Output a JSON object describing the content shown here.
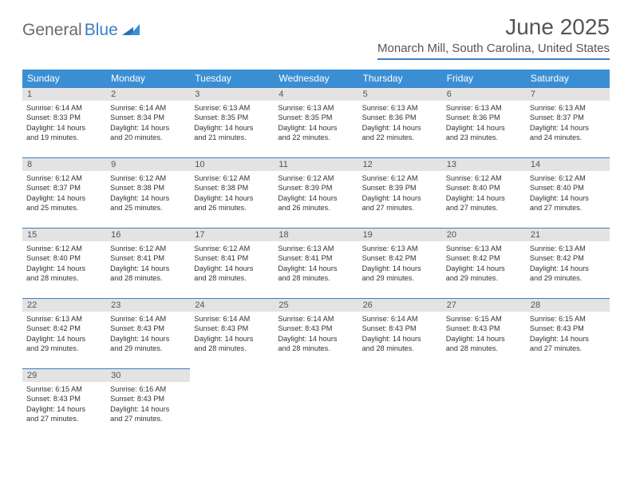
{
  "brand": {
    "part1": "General",
    "part2": "Blue"
  },
  "title": "June 2025",
  "location": "Monarch Mill, South Carolina, United States",
  "colors": {
    "header_bar": "#3a8fd4",
    "accent_line": "#3a7fc4",
    "day_number_bg": "#e3e3e3",
    "text": "#333333",
    "muted": "#555555",
    "logo_blue": "#3a7fc4"
  },
  "weekdays": [
    "Sunday",
    "Monday",
    "Tuesday",
    "Wednesday",
    "Thursday",
    "Friday",
    "Saturday"
  ],
  "days": [
    {
      "n": "1",
      "sunrise": "Sunrise: 6:14 AM",
      "sunset": "Sunset: 8:33 PM",
      "day1": "Daylight: 14 hours",
      "day2": "and 19 minutes."
    },
    {
      "n": "2",
      "sunrise": "Sunrise: 6:14 AM",
      "sunset": "Sunset: 8:34 PM",
      "day1": "Daylight: 14 hours",
      "day2": "and 20 minutes."
    },
    {
      "n": "3",
      "sunrise": "Sunrise: 6:13 AM",
      "sunset": "Sunset: 8:35 PM",
      "day1": "Daylight: 14 hours",
      "day2": "and 21 minutes."
    },
    {
      "n": "4",
      "sunrise": "Sunrise: 6:13 AM",
      "sunset": "Sunset: 8:35 PM",
      "day1": "Daylight: 14 hours",
      "day2": "and 22 minutes."
    },
    {
      "n": "5",
      "sunrise": "Sunrise: 6:13 AM",
      "sunset": "Sunset: 8:36 PM",
      "day1": "Daylight: 14 hours",
      "day2": "and 22 minutes."
    },
    {
      "n": "6",
      "sunrise": "Sunrise: 6:13 AM",
      "sunset": "Sunset: 8:36 PM",
      "day1": "Daylight: 14 hours",
      "day2": "and 23 minutes."
    },
    {
      "n": "7",
      "sunrise": "Sunrise: 6:13 AM",
      "sunset": "Sunset: 8:37 PM",
      "day1": "Daylight: 14 hours",
      "day2": "and 24 minutes."
    },
    {
      "n": "8",
      "sunrise": "Sunrise: 6:12 AM",
      "sunset": "Sunset: 8:37 PM",
      "day1": "Daylight: 14 hours",
      "day2": "and 25 minutes."
    },
    {
      "n": "9",
      "sunrise": "Sunrise: 6:12 AM",
      "sunset": "Sunset: 8:38 PM",
      "day1": "Daylight: 14 hours",
      "day2": "and 25 minutes."
    },
    {
      "n": "10",
      "sunrise": "Sunrise: 6:12 AM",
      "sunset": "Sunset: 8:38 PM",
      "day1": "Daylight: 14 hours",
      "day2": "and 26 minutes."
    },
    {
      "n": "11",
      "sunrise": "Sunrise: 6:12 AM",
      "sunset": "Sunset: 8:39 PM",
      "day1": "Daylight: 14 hours",
      "day2": "and 26 minutes."
    },
    {
      "n": "12",
      "sunrise": "Sunrise: 6:12 AM",
      "sunset": "Sunset: 8:39 PM",
      "day1": "Daylight: 14 hours",
      "day2": "and 27 minutes."
    },
    {
      "n": "13",
      "sunrise": "Sunrise: 6:12 AM",
      "sunset": "Sunset: 8:40 PM",
      "day1": "Daylight: 14 hours",
      "day2": "and 27 minutes."
    },
    {
      "n": "14",
      "sunrise": "Sunrise: 6:12 AM",
      "sunset": "Sunset: 8:40 PM",
      "day1": "Daylight: 14 hours",
      "day2": "and 27 minutes."
    },
    {
      "n": "15",
      "sunrise": "Sunrise: 6:12 AM",
      "sunset": "Sunset: 8:40 PM",
      "day1": "Daylight: 14 hours",
      "day2": "and 28 minutes."
    },
    {
      "n": "16",
      "sunrise": "Sunrise: 6:12 AM",
      "sunset": "Sunset: 8:41 PM",
      "day1": "Daylight: 14 hours",
      "day2": "and 28 minutes."
    },
    {
      "n": "17",
      "sunrise": "Sunrise: 6:12 AM",
      "sunset": "Sunset: 8:41 PM",
      "day1": "Daylight: 14 hours",
      "day2": "and 28 minutes."
    },
    {
      "n": "18",
      "sunrise": "Sunrise: 6:13 AM",
      "sunset": "Sunset: 8:41 PM",
      "day1": "Daylight: 14 hours",
      "day2": "and 28 minutes."
    },
    {
      "n": "19",
      "sunrise": "Sunrise: 6:13 AM",
      "sunset": "Sunset: 8:42 PM",
      "day1": "Daylight: 14 hours",
      "day2": "and 29 minutes."
    },
    {
      "n": "20",
      "sunrise": "Sunrise: 6:13 AM",
      "sunset": "Sunset: 8:42 PM",
      "day1": "Daylight: 14 hours",
      "day2": "and 29 minutes."
    },
    {
      "n": "21",
      "sunrise": "Sunrise: 6:13 AM",
      "sunset": "Sunset: 8:42 PM",
      "day1": "Daylight: 14 hours",
      "day2": "and 29 minutes."
    },
    {
      "n": "22",
      "sunrise": "Sunrise: 6:13 AM",
      "sunset": "Sunset: 8:42 PM",
      "day1": "Daylight: 14 hours",
      "day2": "and 29 minutes."
    },
    {
      "n": "23",
      "sunrise": "Sunrise: 6:14 AM",
      "sunset": "Sunset: 8:43 PM",
      "day1": "Daylight: 14 hours",
      "day2": "and 29 minutes."
    },
    {
      "n": "24",
      "sunrise": "Sunrise: 6:14 AM",
      "sunset": "Sunset: 8:43 PM",
      "day1": "Daylight: 14 hours",
      "day2": "and 28 minutes."
    },
    {
      "n": "25",
      "sunrise": "Sunrise: 6:14 AM",
      "sunset": "Sunset: 8:43 PM",
      "day1": "Daylight: 14 hours",
      "day2": "and 28 minutes."
    },
    {
      "n": "26",
      "sunrise": "Sunrise: 6:14 AM",
      "sunset": "Sunset: 8:43 PM",
      "day1": "Daylight: 14 hours",
      "day2": "and 28 minutes."
    },
    {
      "n": "27",
      "sunrise": "Sunrise: 6:15 AM",
      "sunset": "Sunset: 8:43 PM",
      "day1": "Daylight: 14 hours",
      "day2": "and 28 minutes."
    },
    {
      "n": "28",
      "sunrise": "Sunrise: 6:15 AM",
      "sunset": "Sunset: 8:43 PM",
      "day1": "Daylight: 14 hours",
      "day2": "and 27 minutes."
    },
    {
      "n": "29",
      "sunrise": "Sunrise: 6:15 AM",
      "sunset": "Sunset: 8:43 PM",
      "day1": "Daylight: 14 hours",
      "day2": "and 27 minutes."
    },
    {
      "n": "30",
      "sunrise": "Sunrise: 6:16 AM",
      "sunset": "Sunset: 8:43 PM",
      "day1": "Daylight: 14 hours",
      "day2": "and 27 minutes."
    }
  ],
  "layout": {
    "first_weekday_index": 0,
    "trailing_blanks": 5,
    "cols": 7
  }
}
